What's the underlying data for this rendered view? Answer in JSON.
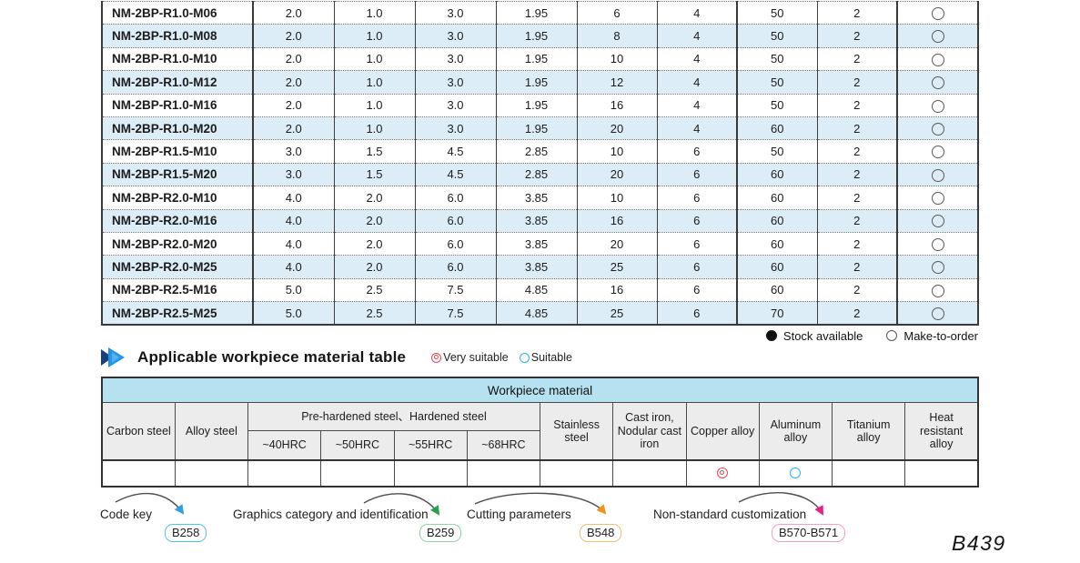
{
  "product_table": {
    "rows": [
      {
        "model": "NM-2BP-R1.0-M06",
        "values": [
          "2.0",
          "1.0",
          "3.0",
          "1.95",
          "6",
          "4",
          "50",
          "2"
        ],
        "stock": "make-to-order"
      },
      {
        "model": "NM-2BP-R1.0-M08",
        "values": [
          "2.0",
          "1.0",
          "3.0",
          "1.95",
          "8",
          "4",
          "50",
          "2"
        ],
        "stock": "make-to-order"
      },
      {
        "model": "NM-2BP-R1.0-M10",
        "values": [
          "2.0",
          "1.0",
          "3.0",
          "1.95",
          "10",
          "4",
          "50",
          "2"
        ],
        "stock": "make-to-order"
      },
      {
        "model": "NM-2BP-R1.0-M12",
        "values": [
          "2.0",
          "1.0",
          "3.0",
          "1.95",
          "12",
          "4",
          "50",
          "2"
        ],
        "stock": "make-to-order"
      },
      {
        "model": "NM-2BP-R1.0-M16",
        "values": [
          "2.0",
          "1.0",
          "3.0",
          "1.95",
          "16",
          "4",
          "50",
          "2"
        ],
        "stock": "make-to-order"
      },
      {
        "model": "NM-2BP-R1.0-M20",
        "values": [
          "2.0",
          "1.0",
          "3.0",
          "1.95",
          "20",
          "4",
          "60",
          "2"
        ],
        "stock": "make-to-order"
      },
      {
        "model": "NM-2BP-R1.5-M10",
        "values": [
          "3.0",
          "1.5",
          "4.5",
          "2.85",
          "10",
          "6",
          "50",
          "2"
        ],
        "stock": "make-to-order"
      },
      {
        "model": "NM-2BP-R1.5-M20",
        "values": [
          "3.0",
          "1.5",
          "4.5",
          "2.85",
          "20",
          "6",
          "60",
          "2"
        ],
        "stock": "make-to-order"
      },
      {
        "model": "NM-2BP-R2.0-M10",
        "values": [
          "4.0",
          "2.0",
          "6.0",
          "3.85",
          "10",
          "6",
          "60",
          "2"
        ],
        "stock": "make-to-order"
      },
      {
        "model": "NM-2BP-R2.0-M16",
        "values": [
          "4.0",
          "2.0",
          "6.0",
          "3.85",
          "16",
          "6",
          "60",
          "2"
        ],
        "stock": "make-to-order"
      },
      {
        "model": "NM-2BP-R2.0-M20",
        "values": [
          "4.0",
          "2.0",
          "6.0",
          "3.85",
          "20",
          "6",
          "60",
          "2"
        ],
        "stock": "make-to-order"
      },
      {
        "model": "NM-2BP-R2.0-M25",
        "values": [
          "4.0",
          "2.0",
          "6.0",
          "3.85",
          "25",
          "6",
          "60",
          "2"
        ],
        "stock": "make-to-order"
      },
      {
        "model": "NM-2BP-R2.5-M16",
        "values": [
          "5.0",
          "2.5",
          "7.5",
          "4.85",
          "16",
          "6",
          "60",
          "2"
        ],
        "stock": "make-to-order"
      },
      {
        "model": "NM-2BP-R2.5-M25",
        "values": [
          "5.0",
          "2.5",
          "7.5",
          "4.85",
          "25",
          "6",
          "70",
          "2"
        ],
        "stock": "make-to-order"
      }
    ]
  },
  "stock_legend": {
    "stock_available": "Stock available",
    "make_to_order": "Make-to-order"
  },
  "section": {
    "title": "Applicable workpiece material table",
    "very_suitable": "Very suitable",
    "suitable": "Suitable"
  },
  "material_table": {
    "header": "Workpiece material",
    "group_label": "Pre-hardened steel、Hardened steel",
    "columns": {
      "carbon": "Carbon steel",
      "alloy": "Alloy steel",
      "hrc40": "~40HRC",
      "hrc50": "~50HRC",
      "hrc55": "~55HRC",
      "hrc68": "~68HRC",
      "stainless": "Stainless steel",
      "cast_iron": "Cast iron, Nodular cast iron",
      "copper": "Copper alloy",
      "aluminum": "Aluminum alloy",
      "titanium": "Titanium alloy",
      "heat": "Heat resistant alloy"
    },
    "ratings": {
      "carbon": "",
      "alloy": "",
      "hrc40": "",
      "hrc50": "",
      "hrc55": "",
      "hrc68": "",
      "stainless": "",
      "cast_iron": "",
      "copper": "very-suitable",
      "aluminum": "suitable",
      "titanium": "",
      "heat": ""
    }
  },
  "footer": {
    "links": [
      {
        "label": "Code key",
        "badge": "B258",
        "color": "#4fc6e9"
      },
      {
        "label": "Graphics category and identification",
        "badge": "B259",
        "color": "#8ed6a8"
      },
      {
        "label": "Cutting parameters",
        "badge": "B548",
        "color": "#f6bc72"
      },
      {
        "label": "Non-standard customization",
        "badge": "B570-B571",
        "color": "#f79cc4"
      }
    ],
    "page_number": "B439"
  },
  "colors": {
    "stripe_blue": "#dcedf8",
    "band_blue": "#b6e1f0",
    "header_gray": "#ececec",
    "very_suitable_red": "#e8465a",
    "suitable_cyan": "#2ab4e4",
    "arrowhead_blue": "#2f9fe0",
    "arrowhead_green": "#2aa04e",
    "arrowhead_orange": "#f2921d",
    "arrowhead_magenta": "#ea1f8e"
  }
}
